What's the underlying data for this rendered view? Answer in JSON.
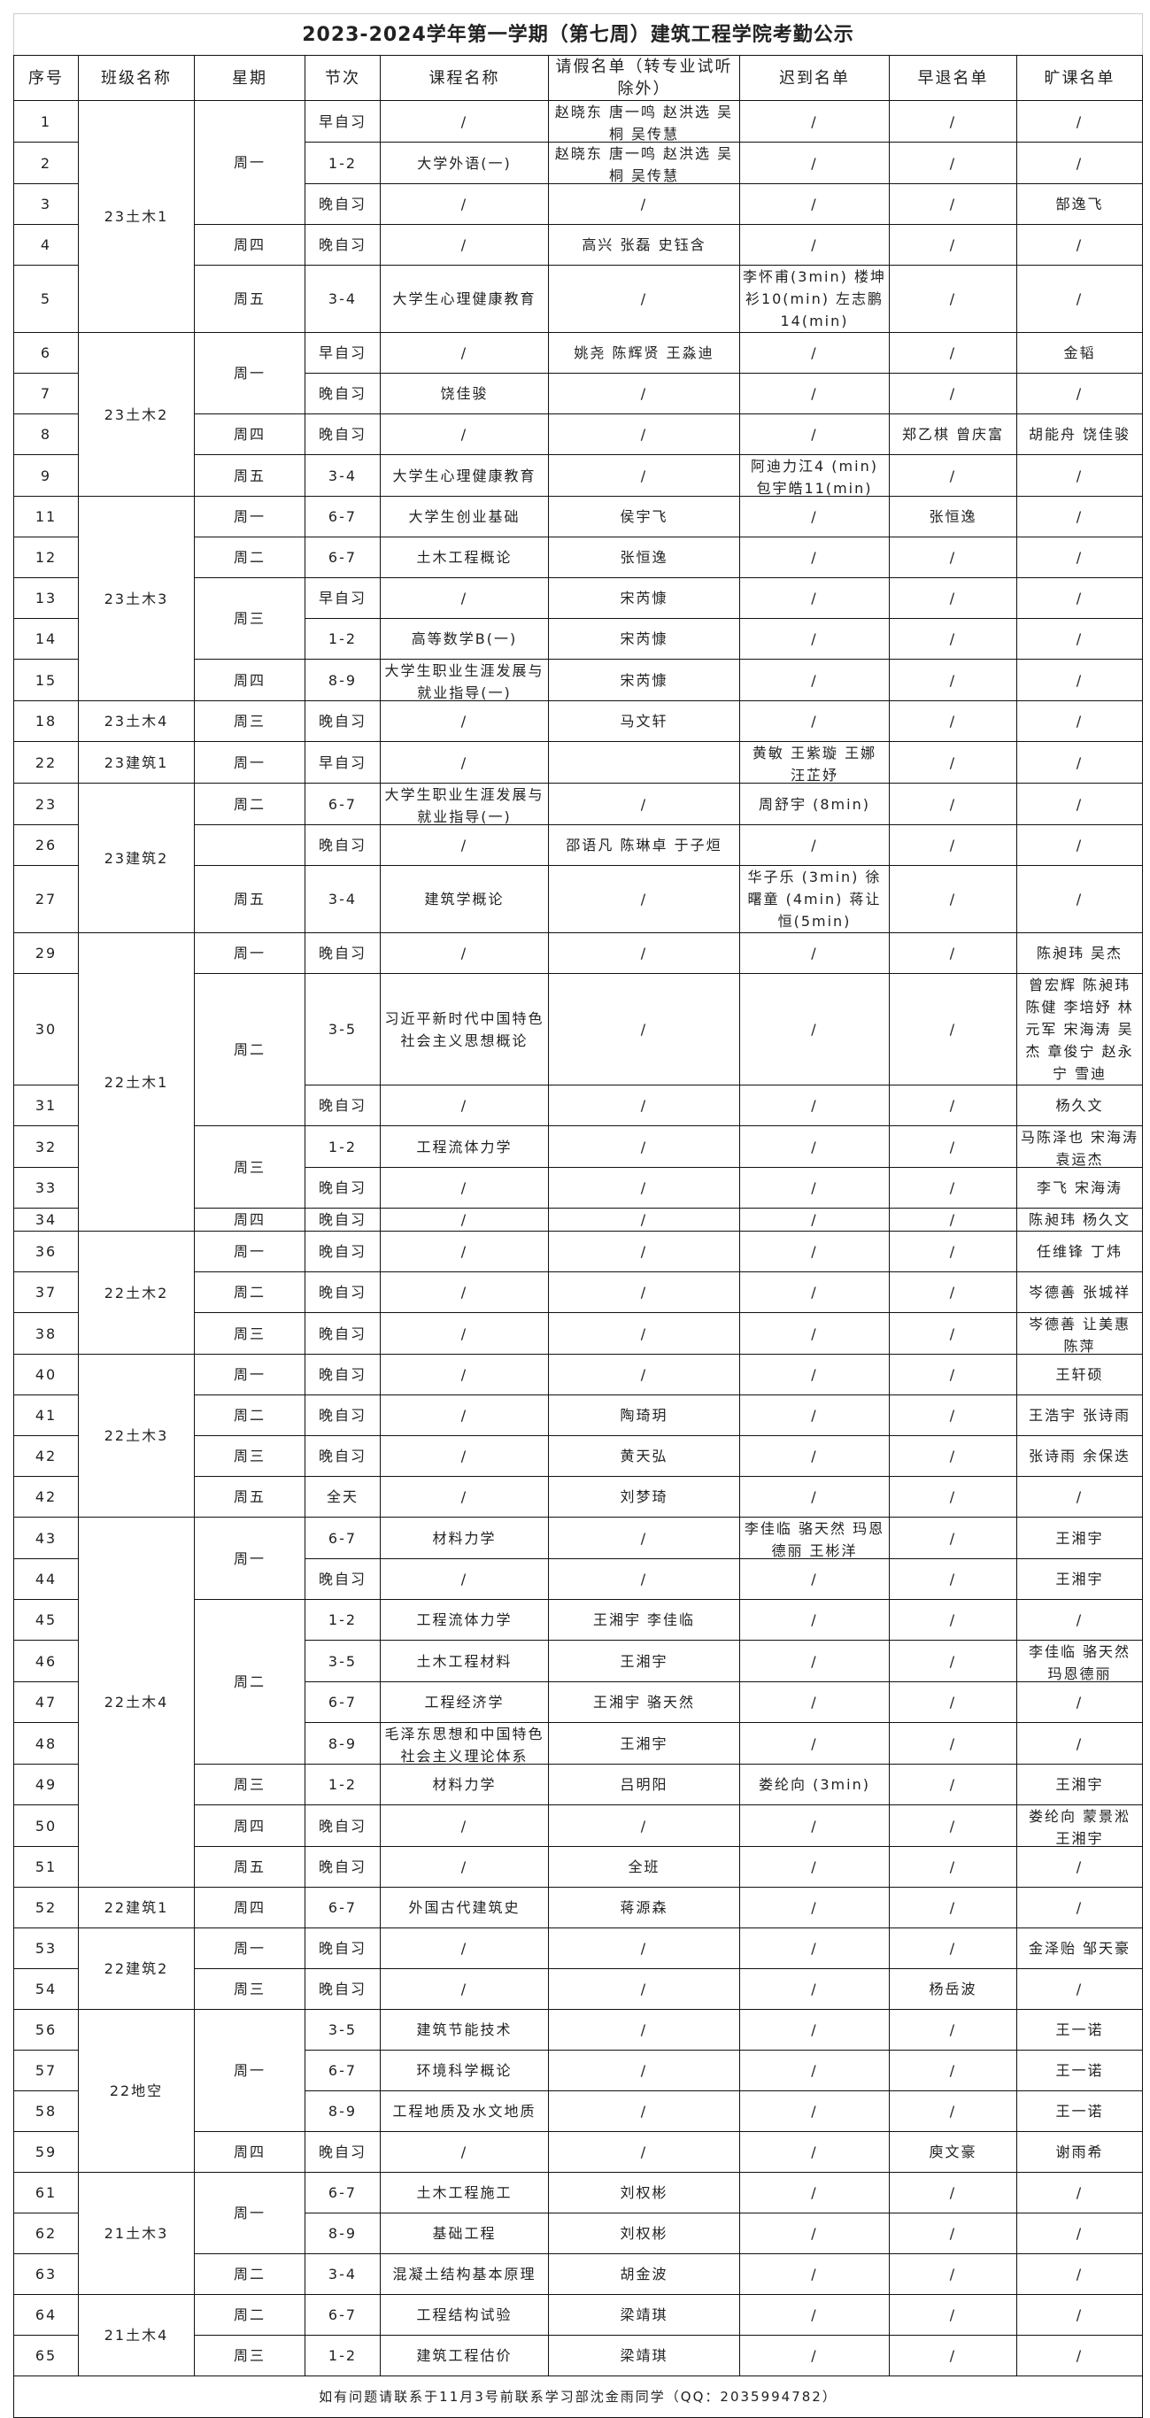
{
  "title": "2023-2024学年第一学期（第七周）建筑工程学院考勤公示",
  "headers": [
    "序号",
    "班级名称",
    "星期",
    "节次",
    "课程名称",
    "请假名单（转专业试听除外）",
    "迟到名单",
    "早退名单",
    "旷课名单"
  ],
  "rows": [
    {
      "seq": "1",
      "class": "23土木1",
      "day": "周一",
      "session": "早自习",
      "course": "/",
      "leave": "赵晓东 唐一鸣 赵洪选 吴桐 吴传慧",
      "late": "/",
      "early": "/",
      "absent": "/"
    },
    {
      "seq": "2",
      "class": "23土木1",
      "day": "周一",
      "session": "1-2",
      "course": "大学外语(一)",
      "leave": "赵晓东 唐一鸣 赵洪选 吴桐 吴传慧",
      "late": "/",
      "early": "/",
      "absent": "/"
    },
    {
      "seq": "3",
      "class": "23土木1",
      "day": "周一",
      "session": "晚自习",
      "course": "/",
      "leave": "/",
      "late": "/",
      "early": "/",
      "absent": "郜逸飞"
    },
    {
      "seq": "4",
      "class": "23土木1",
      "day": "周四",
      "session": "晚自习",
      "course": "/",
      "leave": "高兴 张磊 史钰含",
      "late": "/",
      "early": "/",
      "absent": "/"
    },
    {
      "seq": "5",
      "class": "23土木1",
      "day": "周五",
      "session": "3-4",
      "course": "大学生心理健康教育",
      "leave": "/",
      "late": "李怀甫(3min) 楼坤衫10(min) 左志鹏14(min)",
      "early": "/",
      "absent": "/"
    },
    {
      "seq": "6",
      "class": "23土木2",
      "day": "周一",
      "session": "早自习",
      "course": "/",
      "leave": "姚尧 陈辉贤 王淼迪",
      "late": "/",
      "early": "/",
      "absent": "金韬"
    },
    {
      "seq": "7",
      "class": "23土木2",
      "day": "周一",
      "session": "晚自习",
      "course": "饶佳骏",
      "leave": "/",
      "late": "/",
      "early": "/",
      "absent": "/"
    },
    {
      "seq": "8",
      "class": "23土木2",
      "day": "周四",
      "session": "晚自习",
      "course": "/",
      "leave": "/",
      "late": "/",
      "early": "郑乙棋 曾庆富",
      "absent": "胡能舟 饶佳骏"
    },
    {
      "seq": "9",
      "class": "23土木2",
      "day": "周五",
      "session": "3-4",
      "course": "大学生心理健康教育",
      "leave": "/",
      "late": "阿迪力江4 (min) 包宇皓11(min)",
      "early": "/",
      "absent": "/"
    },
    {
      "seq": "11",
      "class": "23土木3",
      "day": "周一",
      "session": "6-7",
      "course": "大学生创业基础",
      "leave": "侯宇飞",
      "late": "/",
      "early": "张恒逸",
      "absent": "/"
    },
    {
      "seq": "12",
      "class": "23土木3",
      "day": "周二",
      "session": "6-7",
      "course": "土木工程概论",
      "leave": "张恒逸",
      "late": "/",
      "early": "/",
      "absent": "/"
    },
    {
      "seq": "13",
      "class": "23土木3",
      "day": "周三",
      "session": "早自习",
      "course": "/",
      "leave": "宋芮慷",
      "late": "/",
      "early": "/",
      "absent": "/"
    },
    {
      "seq": "14",
      "class": "23土木3",
      "day": "周三",
      "session": "1-2",
      "course": "高等数学B(一)",
      "leave": "宋芮慷",
      "late": "/",
      "early": "/",
      "absent": "/"
    },
    {
      "seq": "15",
      "class": "23土木3",
      "day": "周四",
      "session": "8-9",
      "course": "大学生职业生涯发展与就业指导(一)",
      "leave": "宋芮慷",
      "late": "/",
      "early": "/",
      "absent": "/"
    },
    {
      "seq": "18",
      "class": "23土木4",
      "day": "周三",
      "session": "晚自习",
      "course": "/",
      "leave": "马文轩",
      "late": "/",
      "early": "/",
      "absent": "/"
    },
    {
      "seq": "22",
      "class": "23建筑1",
      "day": "周一",
      "session": "早自习",
      "course": "/",
      "leave": "",
      "late": "黄敏 王紫璇 王娜 汪芷妤",
      "early": "/",
      "absent": "/"
    },
    {
      "seq": "23",
      "class": "23建筑2",
      "day": "周二",
      "session": "6-7",
      "course": "大学生职业生涯发展与就业指导(一)",
      "leave": "/",
      "late": "周舒宇 (8min)",
      "early": "/",
      "absent": "/"
    },
    {
      "seq": "26",
      "class": "23建筑2",
      "day": "",
      "session": "晚自习",
      "course": "/",
      "leave": "邵语凡 陈琳卓 于子烜",
      "late": "/",
      "early": "/",
      "absent": "/"
    },
    {
      "seq": "27",
      "class": "23建筑2",
      "day": "周五",
      "session": "3-4",
      "course": "建筑学概论",
      "leave": "/",
      "late": "华子乐 (3min) 徐曙童 (4min) 蒋让恒(5min)",
      "early": "/",
      "absent": "/"
    },
    {
      "seq": "29",
      "class": "22土木1",
      "day": "周一",
      "session": "晚自习",
      "course": "/",
      "leave": "/",
      "late": "/",
      "early": "/",
      "absent": "陈昶玮 吴杰"
    },
    {
      "seq": "30",
      "class": "22土木1",
      "day": "周二",
      "session": "3-5",
      "course": "习近平新时代中国特色社会主义思想概论",
      "leave": "/",
      "late": "/",
      "early": "/",
      "absent": "曾宏辉 陈昶玮 陈健 李培妤 林元军 宋海涛 吴杰 章俊宁 赵永宁 雪迪"
    },
    {
      "seq": "31",
      "class": "22土木1",
      "day": "周二",
      "session": "晚自习",
      "course": "/",
      "leave": "/",
      "late": "/",
      "early": "/",
      "absent": "杨久文"
    },
    {
      "seq": "32",
      "class": "22土木1",
      "day": "周三",
      "session": "1-2",
      "course": "工程流体力学",
      "leave": "/",
      "late": "/",
      "early": "/",
      "absent": "马陈泽也 宋海涛 袁运杰"
    },
    {
      "seq": "33",
      "class": "22土木1",
      "day": "周三",
      "session": "晚自习",
      "course": "/",
      "leave": "/",
      "late": "/",
      "early": "/",
      "absent": "李飞 宋海涛"
    },
    {
      "seq": "34",
      "class": "22土木1",
      "day": "周四",
      "session": "晚自习",
      "course": "/",
      "leave": "/",
      "late": "/",
      "early": "/",
      "absent": "陈昶玮 杨久文"
    },
    {
      "seq": "36",
      "class": "22土木2",
      "day": "周一",
      "session": "晚自习",
      "course": "/",
      "leave": "/",
      "late": "/",
      "early": "/",
      "absent": "任维锋 丁炜"
    },
    {
      "seq": "37",
      "class": "22土木2",
      "day": "周二",
      "session": "晚自习",
      "course": "/",
      "leave": "/",
      "late": "/",
      "early": "/",
      "absent": "岑德善 张城祥"
    },
    {
      "seq": "38",
      "class": "22土木2",
      "day": "周三",
      "session": "晚自习",
      "course": "/",
      "leave": "/",
      "late": "/",
      "early": "/",
      "absent": "岑德善 让美惠 陈萍"
    },
    {
      "seq": "40",
      "class": "22土木3",
      "day": "周一",
      "session": "晚自习",
      "course": "/",
      "leave": "/",
      "late": "/",
      "early": "/",
      "absent": "王轩硕"
    },
    {
      "seq": "41",
      "class": "22土木3",
      "day": "周二",
      "session": "晚自习",
      "course": "/",
      "leave": "陶琦玥",
      "late": "/",
      "early": "/",
      "absent": "王浩宇 张诗雨"
    },
    {
      "seq": "42",
      "class": "22土木3",
      "day": "周三",
      "session": "晚自习",
      "course": "/",
      "leave": "黄天弘",
      "late": "/",
      "early": "/",
      "absent": "张诗雨 余保迭"
    },
    {
      "seq": "42",
      "class": "22土木3",
      "day": "周五",
      "session": "全天",
      "course": "/",
      "leave": "刘梦琦",
      "late": "/",
      "early": "/",
      "absent": "/"
    },
    {
      "seq": "43",
      "class": "22土木4",
      "day": "周一",
      "session": "6-7",
      "course": "材料力学",
      "leave": "/",
      "late": "李佳临 骆天然 玛恩德丽 王彬洋",
      "early": "/",
      "absent": "王湘宇"
    },
    {
      "seq": "44",
      "class": "22土木4",
      "day": "周一",
      "session": "晚自习",
      "course": "/",
      "leave": "/",
      "late": "/",
      "early": "/",
      "absent": "王湘宇"
    },
    {
      "seq": "45",
      "class": "22土木4",
      "day": "周二",
      "session": "1-2",
      "course": "工程流体力学",
      "leave": "王湘宇 李佳临",
      "late": "/",
      "early": "/",
      "absent": "/"
    },
    {
      "seq": "46",
      "class": "22土木4",
      "day": "周二",
      "session": "3-5",
      "course": "土木工程材料",
      "leave": "王湘宇",
      "late": "/",
      "early": "/",
      "absent": "李佳临 骆天然 玛恩德丽"
    },
    {
      "seq": "47",
      "class": "22土木4",
      "day": "周二",
      "session": "6-7",
      "course": "工程经济学",
      "leave": "王湘宇 骆天然",
      "late": "/",
      "early": "/",
      "absent": "/"
    },
    {
      "seq": "48",
      "class": "22土木4",
      "day": "周二",
      "session": "8-9",
      "course": "毛泽东思想和中国特色社会主义理论体系",
      "leave": "王湘宇",
      "late": "/",
      "early": "/",
      "absent": "/"
    },
    {
      "seq": "49",
      "class": "22土木4",
      "day": "周三",
      "session": "1-2",
      "course": "材料力学",
      "leave": "吕明阳",
      "late": "娄纶向 (3min)",
      "early": "/",
      "absent": "王湘宇"
    },
    {
      "seq": "50",
      "class": "22土木4",
      "day": "周四",
      "session": "晚自习",
      "course": "/",
      "leave": "/",
      "late": "/",
      "early": "/",
      "absent": "娄纶向 蒙景淞 王湘宇"
    },
    {
      "seq": "51",
      "class": "22土木4",
      "day": "周五",
      "session": "晚自习",
      "course": "/",
      "leave": "全班",
      "late": "/",
      "early": "/",
      "absent": "/"
    },
    {
      "seq": "52",
      "class": "22建筑1",
      "day": "周四",
      "session": "6-7",
      "course": "外国古代建筑史",
      "leave": "蒋源森",
      "late": "/",
      "early": "/",
      "absent": "/"
    },
    {
      "seq": "53",
      "class": "22建筑2",
      "day": "周一",
      "session": "晚自习",
      "course": "/",
      "leave": "/",
      "late": "/",
      "early": "/",
      "absent": "金泽贻 邹天豪"
    },
    {
      "seq": "54",
      "class": "22建筑2",
      "day": "周三",
      "session": "晚自习",
      "course": "/",
      "leave": "/",
      "late": "/",
      "early": "杨岳波",
      "absent": "/"
    },
    {
      "seq": "56",
      "class": "22地空",
      "day": "周一",
      "session": "3-5",
      "course": "建筑节能技术",
      "leave": "/",
      "late": "/",
      "early": "/",
      "absent": "王一诺"
    },
    {
      "seq": "57",
      "class": "22地空",
      "day": "周一",
      "session": "6-7",
      "course": "环境科学概论",
      "leave": "/",
      "late": "/",
      "early": "/",
      "absent": "王一诺"
    },
    {
      "seq": "58",
      "class": "22地空",
      "day": "周一",
      "session": "8-9",
      "course": "工程地质及水文地质",
      "leave": "/",
      "late": "/",
      "early": "/",
      "absent": "王一诺"
    },
    {
      "seq": "59",
      "class": "22地空",
      "day": "周四",
      "session": "晚自习",
      "course": "/",
      "leave": "/",
      "late": "/",
      "early": "庾文豪",
      "absent": "谢雨希"
    },
    {
      "seq": "61",
      "class": "21土木3",
      "day": "周一",
      "session": "6-7",
      "course": "土木工程施工",
      "leave": "刘权彬",
      "late": "/",
      "early": "/",
      "absent": "/"
    },
    {
      "seq": "62",
      "class": "21土木3",
      "day": "周一",
      "session": "8-9",
      "course": "基础工程",
      "leave": "刘权彬",
      "late": "/",
      "early": "/",
      "absent": "/"
    },
    {
      "seq": "63",
      "class": "21土木3",
      "day": "周二",
      "session": "3-4",
      "course": "混凝土结构基本原理",
      "leave": "胡金波",
      "late": "/",
      "early": "/",
      "absent": "/"
    },
    {
      "seq": "64",
      "class": "21土木4",
      "day": "周二",
      "session": "6-7",
      "course": "工程结构试验",
      "leave": "梁靖琪",
      "late": "/",
      "early": "/",
      "absent": "/"
    },
    {
      "seq": "65",
      "class": "21土木4",
      "day": "周三",
      "session": "1-2",
      "course": "建筑工程估价",
      "leave": "梁靖琪",
      "late": "/",
      "early": "/",
      "absent": "/"
    }
  ],
  "footer": "如有问题请联系于11月3号前联系学习部沈金雨同学（QQ：2035994782）"
}
